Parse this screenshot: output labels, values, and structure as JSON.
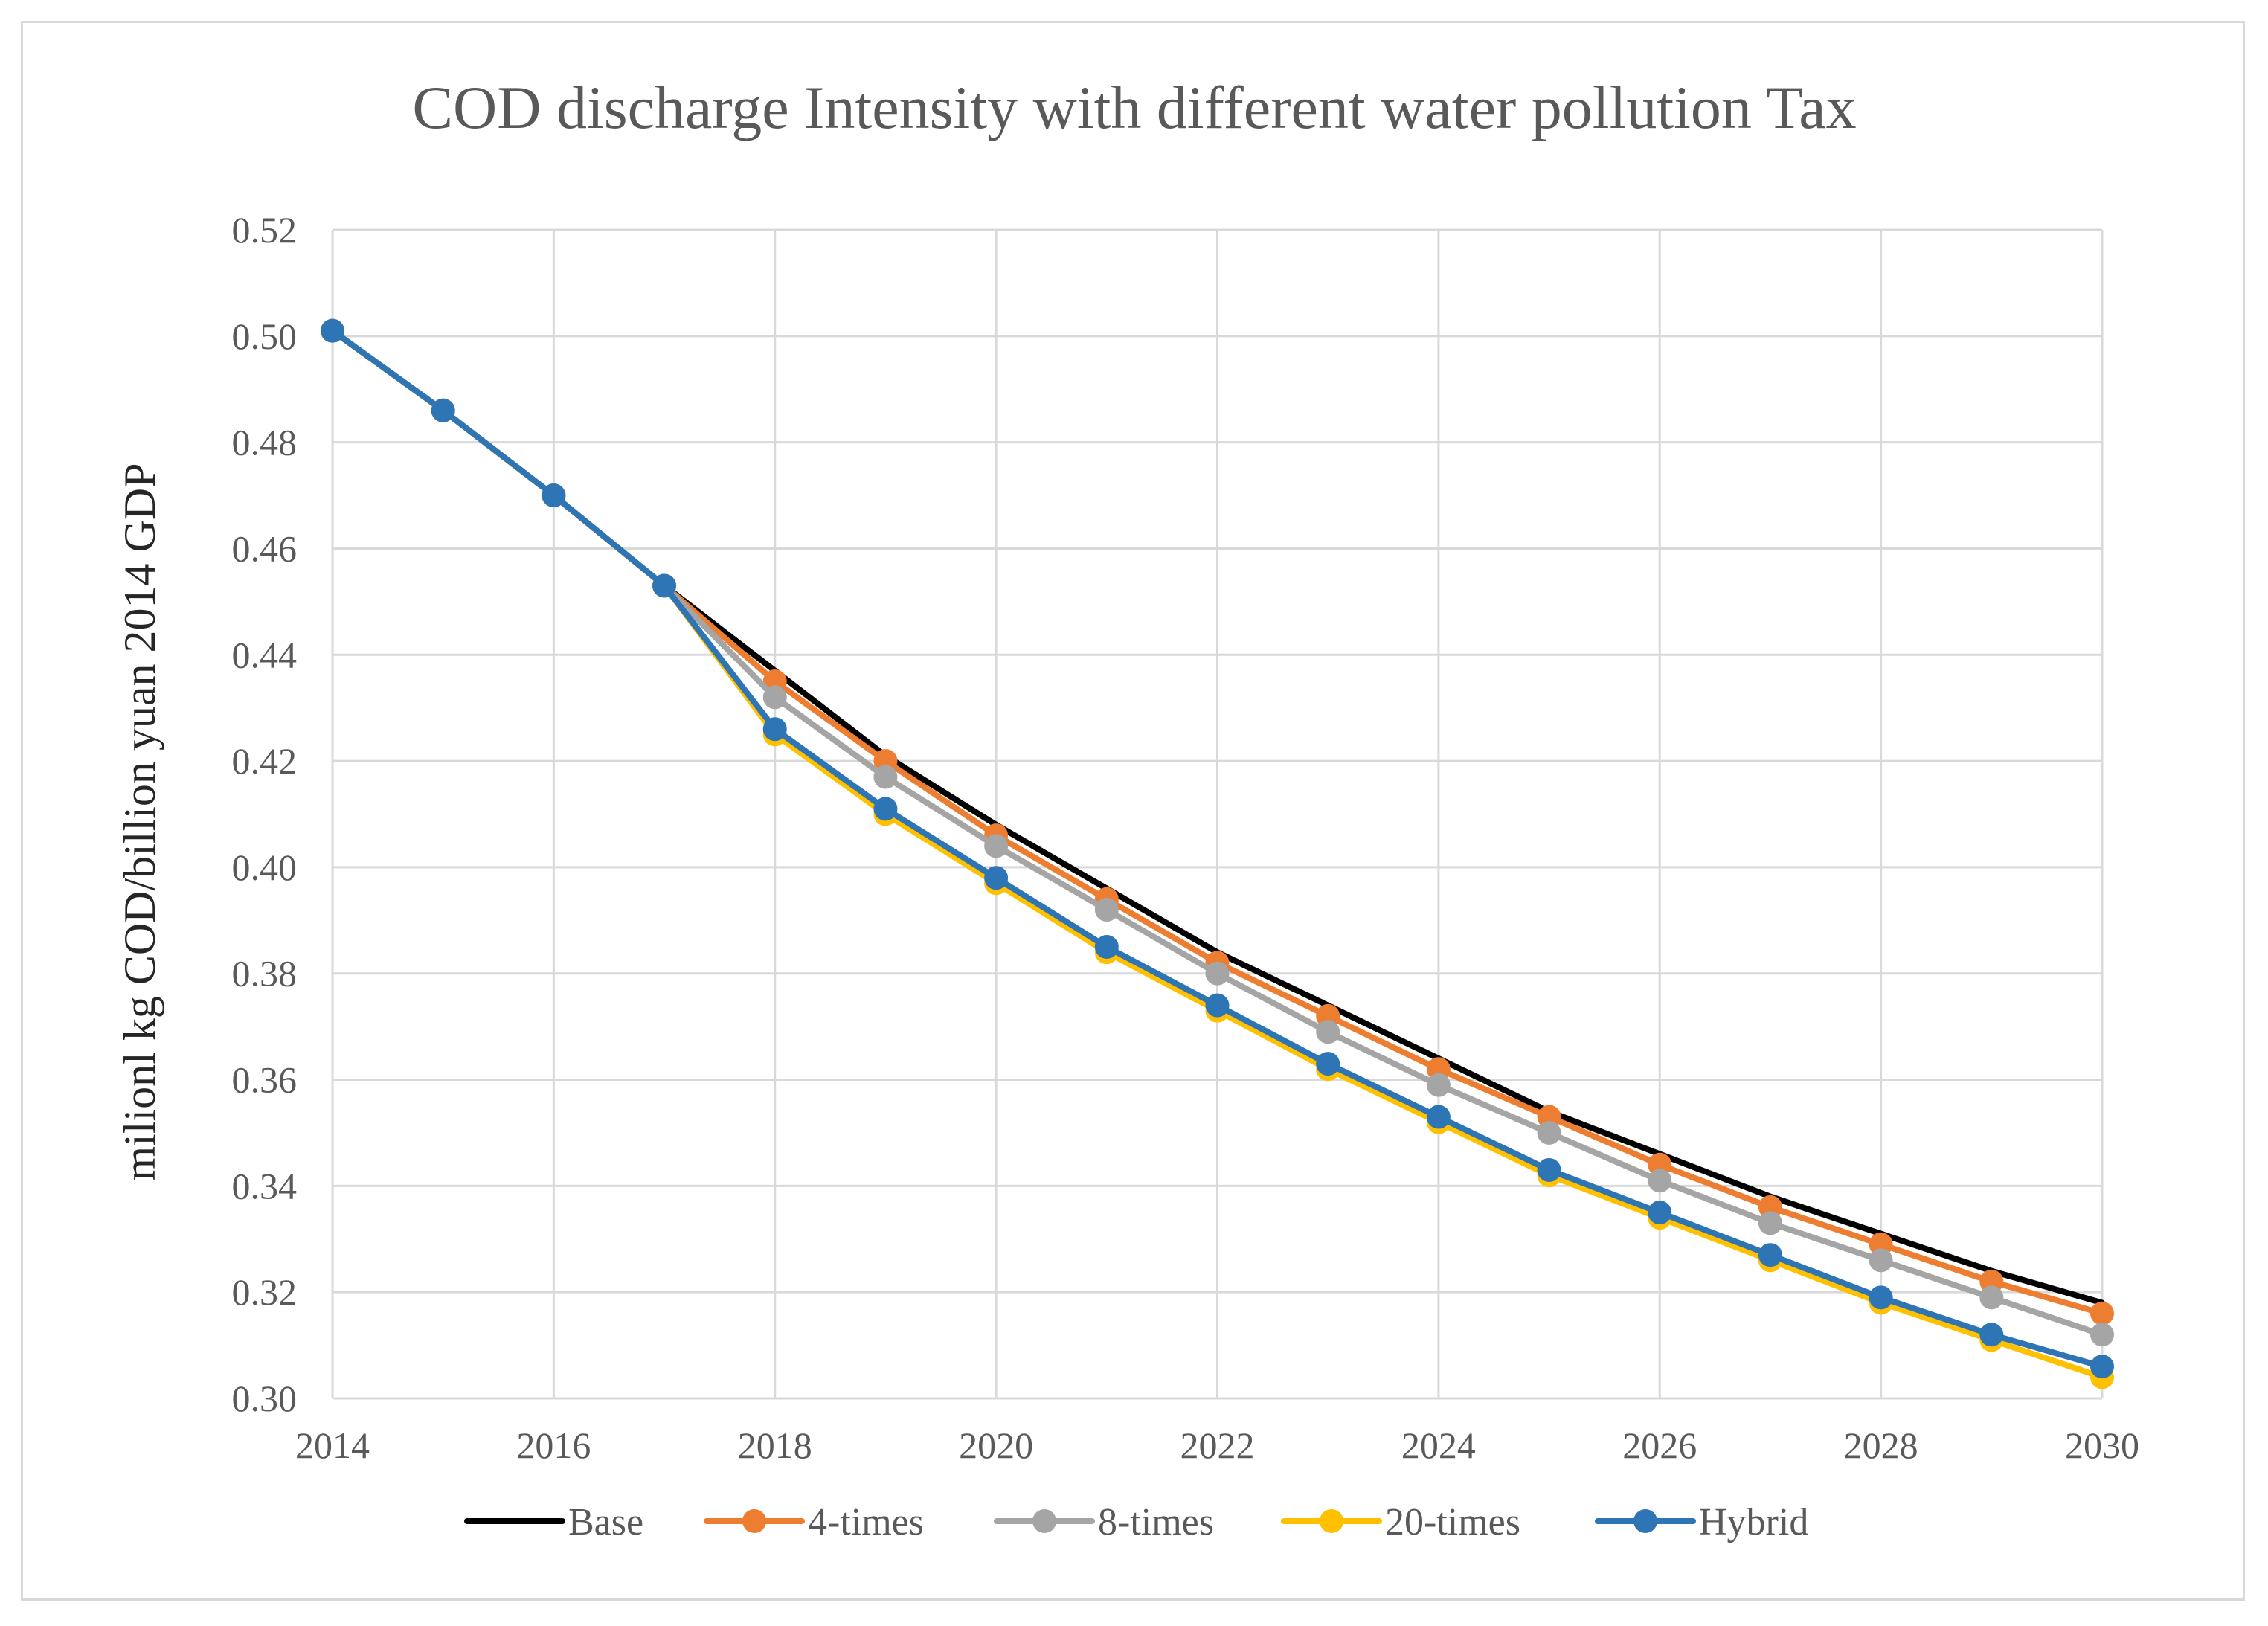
{
  "chart_data": {
    "type": "line",
    "title": "COD discharge Intensity with different water pollution Tax",
    "xlabel": "",
    "ylabel": "milionl kg COD/billion yuan 2014 GDP",
    "xlim": [
      2014,
      2030
    ],
    "ylim": [
      0.3,
      0.52
    ],
    "x_ticks": [
      "2014",
      "2016",
      "2018",
      "2020",
      "2022",
      "2024",
      "2026",
      "2028",
      "2030"
    ],
    "y_ticks": [
      "0.30",
      "0.32",
      "0.34",
      "0.36",
      "0.38",
      "0.40",
      "0.42",
      "0.44",
      "0.46",
      "0.48",
      "0.50",
      "0.52"
    ],
    "grid": true,
    "legend_position": "bottom",
    "x": [
      2014,
      2015,
      2016,
      2017,
      2018,
      2019,
      2020,
      2021,
      2022,
      2023,
      2024,
      2025,
      2026,
      2027,
      2028,
      2029,
      2030
    ],
    "series": [
      {
        "name": "Base",
        "color": "#000000",
        "markers": false,
        "values": [
          0.501,
          0.486,
          0.47,
          0.453,
          0.437,
          0.421,
          0.408,
          0.396,
          0.384,
          0.374,
          0.364,
          0.354,
          0.346,
          0.338,
          0.331,
          0.324,
          0.318
        ]
      },
      {
        "name": "4-times",
        "color": "#ed7d31",
        "markers": true,
        "values": [
          0.501,
          0.486,
          0.47,
          0.453,
          0.435,
          0.42,
          0.406,
          0.394,
          0.382,
          0.372,
          0.362,
          0.353,
          0.344,
          0.336,
          0.329,
          0.322,
          0.316
        ]
      },
      {
        "name": "8-times",
        "color": "#a5a5a5",
        "markers": true,
        "values": [
          0.501,
          0.486,
          0.47,
          0.453,
          0.432,
          0.417,
          0.404,
          0.392,
          0.38,
          0.369,
          0.359,
          0.35,
          0.341,
          0.333,
          0.326,
          0.319,
          0.312
        ]
      },
      {
        "name": "20-times",
        "color": "#ffc000",
        "markers": true,
        "values": [
          0.501,
          0.486,
          0.47,
          0.453,
          0.425,
          0.41,
          0.397,
          0.384,
          0.373,
          0.362,
          0.352,
          0.342,
          0.334,
          0.326,
          0.318,
          0.311,
          0.304
        ]
      },
      {
        "name": "Hybrid",
        "color": "#2e75b6",
        "markers": true,
        "values": [
          0.501,
          0.486,
          0.47,
          0.453,
          0.426,
          0.411,
          0.398,
          0.385,
          0.374,
          0.363,
          0.353,
          0.343,
          0.335,
          0.327,
          0.319,
          0.312,
          0.306
        ]
      }
    ]
  }
}
